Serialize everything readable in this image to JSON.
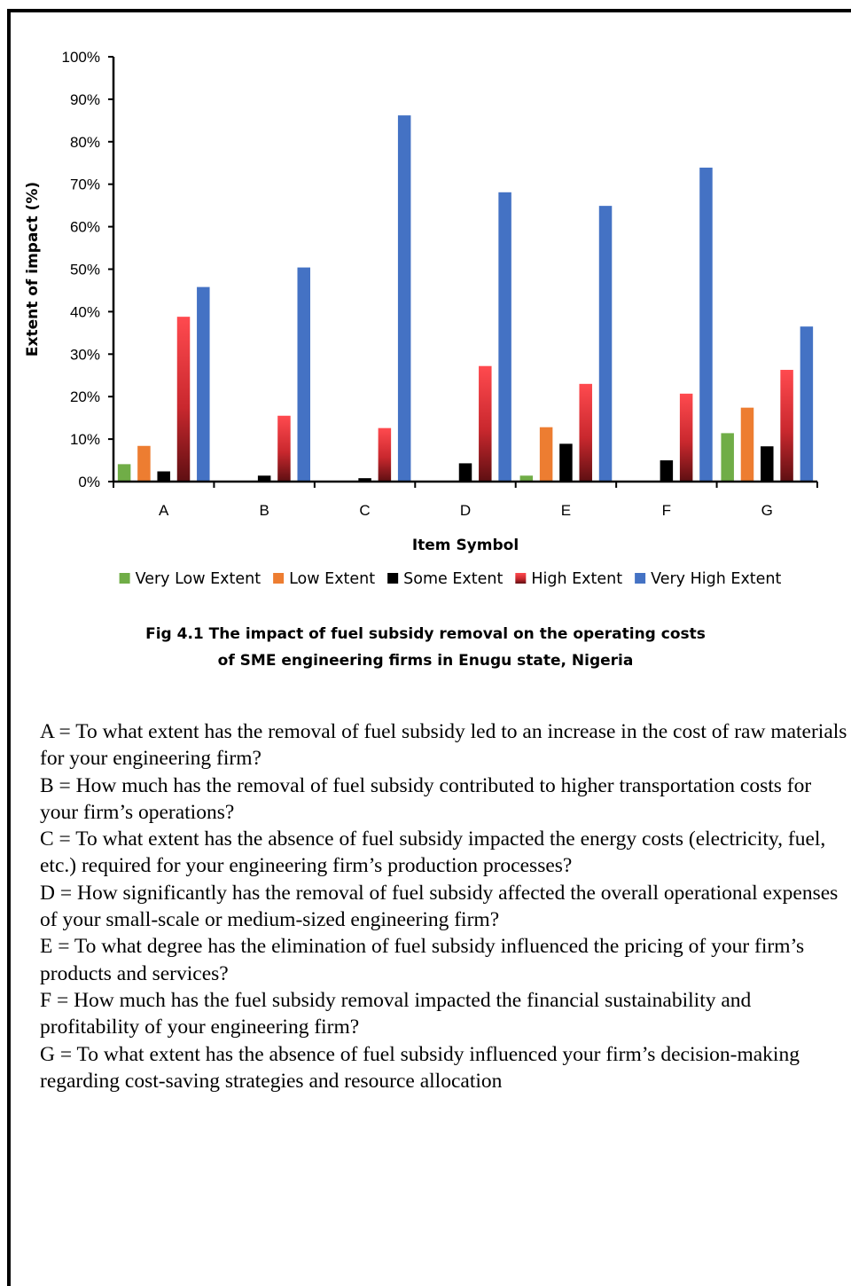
{
  "chart_data": {
    "type": "bar",
    "title": "",
    "xlabel": "Item Symbol",
    "ylabel": "Extent of impact (%)",
    "ylim": [
      0,
      100
    ],
    "yticks": [
      "0%",
      "10%",
      "20%",
      "30%",
      "40%",
      "50%",
      "60%",
      "70%",
      "80%",
      "90%",
      "100%"
    ],
    "categories": [
      "A",
      "B",
      "C",
      "D",
      "E",
      "F",
      "G"
    ],
    "series": [
      {
        "name": "Very Low Extent",
        "color": "#70AD47",
        "values": [
          4.1,
          0,
          0,
          0,
          1.4,
          0,
          11.4
        ]
      },
      {
        "name": "Low Extent",
        "color": "#ED7D31",
        "values": [
          8.4,
          0,
          0,
          0,
          12.8,
          0,
          17.4
        ]
      },
      {
        "name": "Some Extent",
        "color": "#000000",
        "values": [
          2.4,
          1.4,
          0.8,
          4.3,
          8.9,
          5.0,
          8.3
        ]
      },
      {
        "name": "High Extent",
        "color": "#E8353B",
        "values": [
          38.8,
          15.5,
          12.6,
          27.2,
          23.0,
          20.7,
          26.3
        ]
      },
      {
        "name": "Very High Extent",
        "color": "#4472C4",
        "values": [
          45.8,
          50.4,
          86.2,
          68.1,
          64.9,
          73.9,
          36.5
        ]
      }
    ],
    "grid": false,
    "legend_position": "bottom"
  },
  "caption": {
    "line1": "Fig 4.1   The impact of fuel subsidy removal on the operating costs",
    "line2": "of SME engineering firms in Enugu state, Nigeria"
  },
  "notes": [
    "A = To what extent has the removal of fuel subsidy led to an increase in the cost of raw materials for your engineering firm?",
    "B = How much has the removal of fuel subsidy contributed to higher transportation costs for your firm’s operations?",
    "C = To what extent has the absence of fuel subsidy impacted the energy costs (electricity, fuel, etc.) required for your engineering firm’s production processes?",
    "D = How significantly has the removal of fuel subsidy affected the overall operational expenses of your small-scale or medium-sized engineering firm?",
    "E = To what degree has the elimination of fuel subsidy influenced the pricing of your firm’s products and services?",
    "F = How much has the fuel subsidy removal impacted the financial sustainability and profitability of your engineering firm?",
    "G = To what extent has the absence of fuel subsidy influenced your firm’s decision-making regarding cost-saving strategies and resource allocation"
  ]
}
